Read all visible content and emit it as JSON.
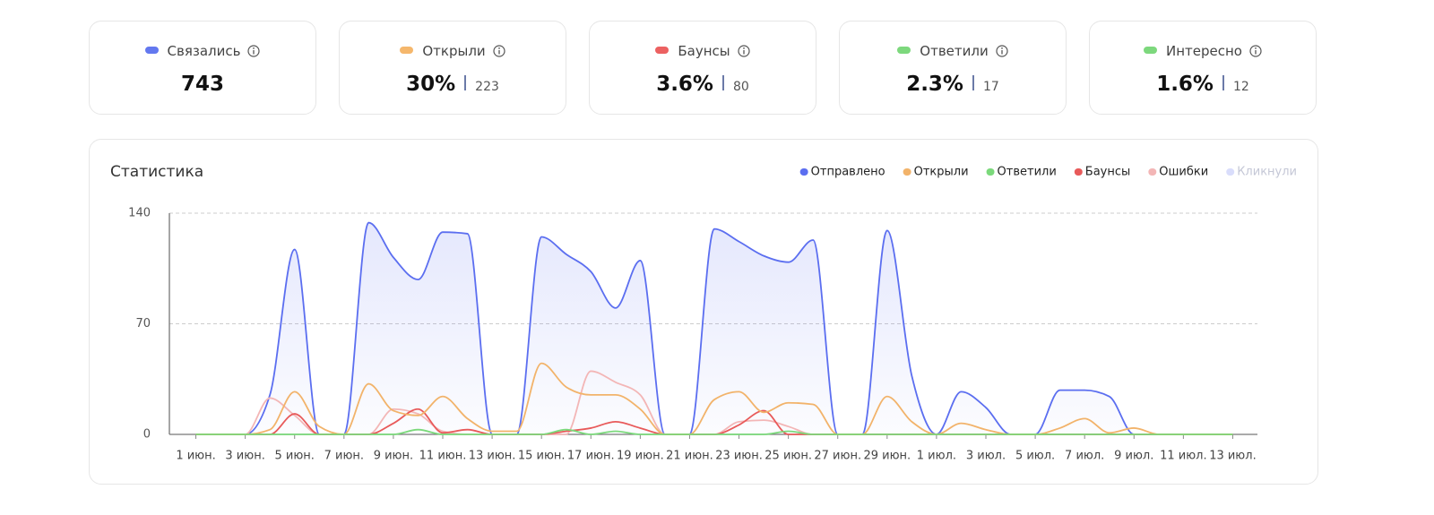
{
  "cards": [
    {
      "label": "Связались",
      "color": "#6378ef",
      "value": "743"
    },
    {
      "label": "Открыли",
      "color": "#f5b76c",
      "value": "30%",
      "sub": "223"
    },
    {
      "label": "Баунсы",
      "color": "#ec6161",
      "value": "3.6%",
      "sub": "80"
    },
    {
      "label": "Ответили",
      "color": "#7dd87d",
      "value": "2.3%",
      "sub": "17"
    },
    {
      "label": "Интересно",
      "color": "#7dd87d",
      "value": "1.6%",
      "sub": "12"
    }
  ],
  "chart_data": {
    "type": "line",
    "title": "Статистика",
    "categories": [
      "1 июн.",
      null,
      "3 июн.",
      null,
      "5 июн.",
      null,
      "7 июн.",
      null,
      "9 июн.",
      null,
      "11 июн.",
      null,
      "13 июн.",
      null,
      "15 июн.",
      null,
      "17 июн.",
      null,
      "19 июн.",
      null,
      "21 июн.",
      null,
      "23 июн.",
      null,
      "25 июн.",
      null,
      "27 июн.",
      null,
      "29 июн.",
      null,
      "1 июл.",
      null,
      "3 июл.",
      null,
      "5 июл.",
      null,
      "7 июл.",
      null,
      "9 июл.",
      null,
      "11 июл.",
      null,
      "13 июл."
    ],
    "series": [
      {
        "name": "Отправлено",
        "color": "#5b6ef0",
        "area": true,
        "values": [
          0,
          0,
          0,
          25,
          117,
          0,
          0,
          134,
          112,
          98,
          128,
          127,
          0,
          0,
          125,
          114,
          103,
          80,
          110,
          0,
          0,
          130,
          122,
          113,
          109,
          123,
          0,
          0,
          129,
          37,
          0,
          27,
          17,
          0,
          0,
          28,
          28,
          24,
          0,
          0,
          0,
          0,
          0
        ]
      },
      {
        "name": "Открыли",
        "color": "#f2b36a",
        "values": [
          0,
          0,
          0,
          3,
          27,
          5,
          0,
          32,
          15,
          12,
          24,
          10,
          2,
          2,
          45,
          30,
          25,
          25,
          16,
          0,
          0,
          22,
          27,
          14,
          20,
          19,
          0,
          0,
          24,
          8,
          0,
          7,
          3,
          0,
          0,
          4,
          10,
          1,
          4,
          0,
          0,
          0,
          0
        ]
      },
      {
        "name": "Ответили",
        "color": "#7bd97b",
        "values": [
          0,
          0,
          0,
          0,
          0,
          0,
          0,
          0,
          0,
          3,
          0,
          0,
          0,
          0,
          0,
          3,
          0,
          2,
          0,
          0,
          0,
          0,
          0,
          0,
          2,
          0,
          0,
          0,
          0,
          0,
          0,
          0,
          0,
          0,
          0,
          0,
          0,
          0,
          0,
          0,
          0,
          0,
          0
        ]
      },
      {
        "name": "Баунсы",
        "color": "#e85a5a",
        "values": [
          0,
          0,
          0,
          0,
          13,
          0,
          0,
          0,
          7,
          16,
          1,
          3,
          0,
          0,
          0,
          2,
          4,
          8,
          4,
          0,
          0,
          0,
          6,
          15,
          0,
          0,
          0,
          0,
          0,
          0,
          0,
          0,
          0,
          0,
          0,
          0,
          0,
          0,
          0,
          0,
          0,
          0,
          0
        ]
      },
      {
        "name": "Ошибки",
        "color": "#f3b6b6",
        "values": [
          0,
          0,
          0,
          23,
          12,
          0,
          0,
          0,
          16,
          13,
          2,
          0,
          0,
          0,
          0,
          0,
          40,
          33,
          25,
          0,
          0,
          0,
          8,
          9,
          5,
          0,
          0,
          0,
          0,
          0,
          0,
          0,
          0,
          0,
          0,
          0,
          0,
          0,
          0,
          0,
          0,
          0,
          0
        ]
      },
      {
        "name": "Кликнули",
        "color": "#d9ddfb",
        "hidden": true
      }
    ],
    "ylim": [
      0,
      140
    ],
    "yticks": [
      0,
      70,
      140
    ],
    "grid": true,
    "legend": "top-right"
  }
}
